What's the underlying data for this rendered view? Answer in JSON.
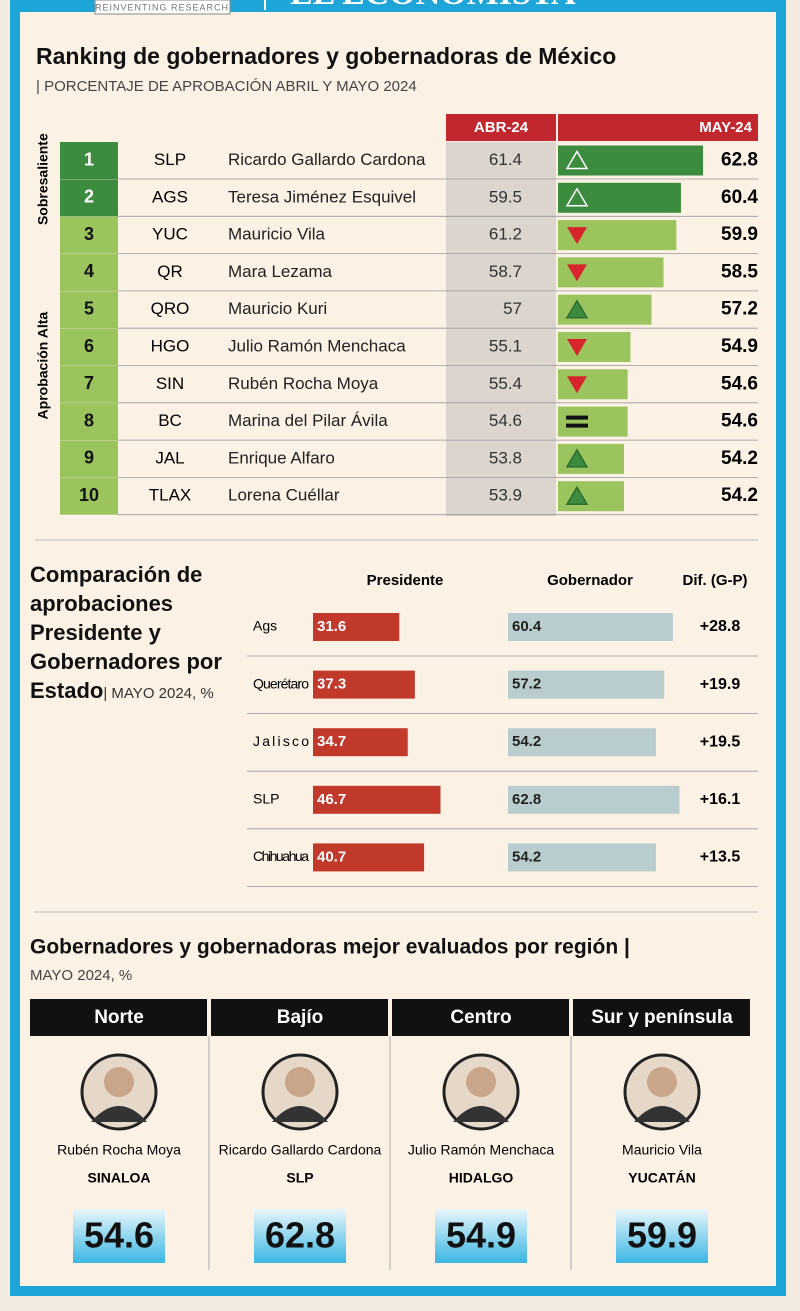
{
  "header": {
    "tagline": "REINVENTING RESEARCH",
    "brand": "EL ECONOMISTA"
  },
  "ranking": {
    "title": "Ranking de gobernadores y gobernadoras de México",
    "subtitle": "| PORCENTAJE DE APROBACIÓN ABRIL Y MAYO 2024",
    "col_prev": "ABR-24",
    "col_curr": "MAY-24",
    "groups": [
      {
        "label": "Sobresaliente",
        "rows": [
          {
            "rank": "1",
            "state": "SLP",
            "name": "Ricardo Gallardo Cardona",
            "abr": 61.4,
            "may": 62.8
          },
          {
            "rank": "2",
            "state": "AGS",
            "name": "Teresa Jiménez Esquivel",
            "abr": 59.5,
            "may": 60.4
          }
        ]
      },
      {
        "label": "Aprobación Alta",
        "rows": [
          {
            "rank": "3",
            "state": "YUC",
            "name": "Mauricio Vila",
            "abr": 61.2,
            "may": 59.9
          },
          {
            "rank": "4",
            "state": "QR",
            "name": "Mara Lezama",
            "abr": 58.7,
            "may": 58.5
          },
          {
            "rank": "5",
            "state": "QRO",
            "name": "Mauricio Kuri",
            "abr": 57.0,
            "may": 57.2
          },
          {
            "rank": "6",
            "state": "HGO",
            "name": "Julio Ramón Menchaca",
            "abr": 55.1,
            "may": 54.9
          },
          {
            "rank": "7",
            "state": "SIN",
            "name": "Rubén Rocha Moya",
            "abr": 55.4,
            "may": 54.6
          },
          {
            "rank": "8",
            "state": "BC",
            "name": "Marina del Pilar Ávila",
            "abr": 54.6,
            "may": 54.6
          },
          {
            "rank": "9",
            "state": "JAL",
            "name": "Enrique Alfaro",
            "abr": 53.8,
            "may": 54.2
          },
          {
            "rank": "10",
            "state": "TLAX",
            "name": "Lorena Cuéllar",
            "abr": 53.9,
            "may": 54.2
          }
        ]
      }
    ]
  },
  "comparison": {
    "title": "Comparación de aprobaciones Presidente y Gobernadores por Estado",
    "subtitle": "| MAYO 2024, %",
    "col_president": "Presidente",
    "col_governor": "Gobernador",
    "col_diff": "Dif. (G-P)",
    "rows": [
      {
        "state": "Ags",
        "president": 31.6,
        "governor": 60.4,
        "diff": "+28.8"
      },
      {
        "state": "Querétaro",
        "president": 37.3,
        "governor": 57.2,
        "diff": "+19.9"
      },
      {
        "state": "Jalisco",
        "president": 34.7,
        "governor": 54.2,
        "diff": "+19.5"
      },
      {
        "state": "SLP",
        "president": 46.7,
        "governor": 62.8,
        "diff": "+16.1"
      },
      {
        "state": "Chihuahua",
        "president": 40.7,
        "governor": 54.2,
        "diff": "+13.5"
      }
    ]
  },
  "regions": {
    "title": "Gobernadores y gobernadoras mejor evaluados por región |",
    "subtitle": "MAYO 2024, %",
    "items": [
      {
        "region": "Norte",
        "name": "Rubén Rocha Moya",
        "state": "SINALOA",
        "value": 54.6
      },
      {
        "region": "Bajío",
        "name": "Ricardo Gallardo Cardona",
        "state": "SLP",
        "value": 62.8
      },
      {
        "region": "Centro",
        "name": "Julio Ramón Menchaca",
        "state": "HIDALGO",
        "value": 54.9
      },
      {
        "region": "Sur y península",
        "name": "Mauricio Vila",
        "state": "YUCATÁN",
        "value": 59.9
      }
    ]
  }
}
